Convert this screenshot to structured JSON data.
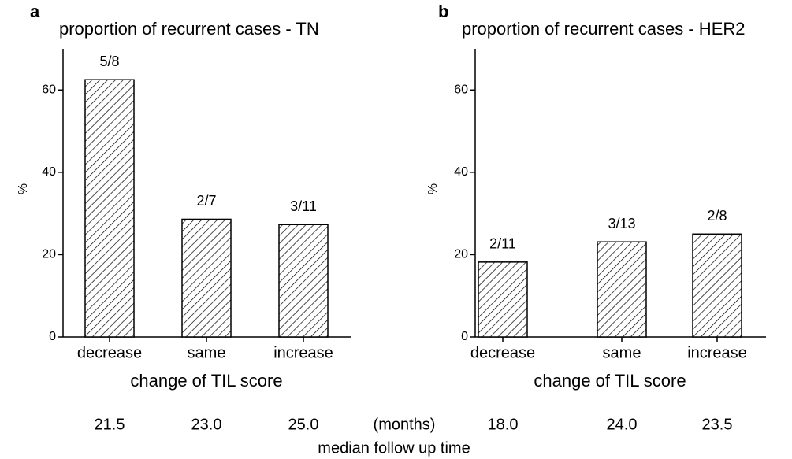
{
  "chart_data": [
    {
      "type": "bar",
      "panel": "a",
      "title": "proportion of recurrent cases - TN",
      "categories": [
        "decrease",
        "same",
        "increase"
      ],
      "values": [
        62.5,
        28.6,
        27.3
      ],
      "value_labels": [
        "5/8",
        "2/7",
        "3/11"
      ],
      "color": "#000000",
      "xlabel": "change of TIL score",
      "ylabel": "%",
      "ylim": [
        0,
        70
      ],
      "yticks": [
        0,
        20,
        40,
        60
      ]
    },
    {
      "type": "bar",
      "panel": "b",
      "title": "proportion of recurrent cases - HER2",
      "categories": [
        "decrease",
        "same",
        "increase"
      ],
      "values": [
        18.2,
        23.1,
        25
      ],
      "value_labels": [
        "2/11",
        "3/13",
        "2/8"
      ],
      "color": "#000000",
      "xlabel": "change of TIL score",
      "ylabel": "%",
      "ylim": [
        0,
        70
      ],
      "yticks": [
        0,
        20,
        40,
        60
      ]
    }
  ],
  "follow_up": {
    "a": [
      "21.5",
      "23.0",
      "25.0"
    ],
    "unit": "(months)",
    "b": [
      "18.0",
      "24.0",
      "23.5"
    ],
    "label": "median follow up time"
  }
}
